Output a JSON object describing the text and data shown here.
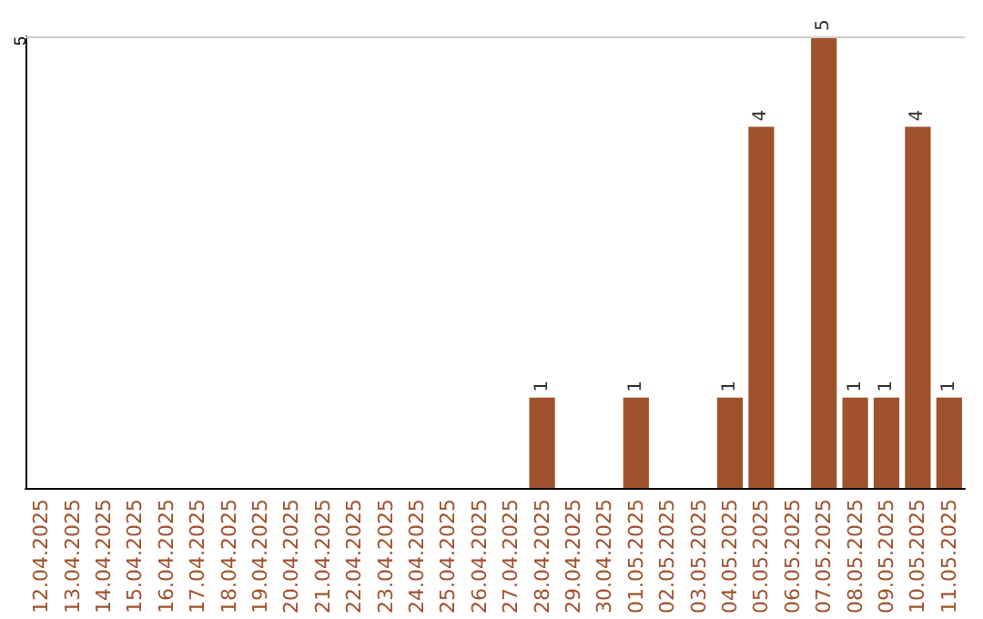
{
  "chart_data": {
    "type": "bar",
    "categories": [
      "12.04.2025",
      "13.04.2025",
      "14.04.2025",
      "15.04.2025",
      "16.04.2025",
      "17.04.2025",
      "18.04.2025",
      "19.04.2025",
      "20.04.2025",
      "21.04.2025",
      "22.04.2025",
      "23.04.2025",
      "24.04.2025",
      "25.04.2025",
      "26.04.2025",
      "27.04.2025",
      "28.04.2025",
      "29.04.2025",
      "30.04.2025",
      "01.05.2025",
      "02.05.2025",
      "03.05.2025",
      "04.05.2025",
      "05.05.2025",
      "06.05.2025",
      "07.05.2025",
      "08.05.2025",
      "09.05.2025",
      "10.05.2025",
      "11.05.2025"
    ],
    "values": [
      null,
      null,
      null,
      null,
      null,
      null,
      null,
      null,
      null,
      null,
      null,
      null,
      null,
      null,
      null,
      null,
      1,
      null,
      null,
      1,
      null,
      null,
      1,
      4,
      null,
      5,
      1,
      1,
      4,
      1
    ],
    "value_labels": [
      null,
      null,
      null,
      null,
      null,
      null,
      null,
      null,
      null,
      null,
      null,
      null,
      null,
      null,
      null,
      null,
      "1",
      null,
      null,
      "1",
      null,
      null,
      "1",
      "4",
      null,
      "5",
      "1",
      "1",
      "4",
      "1"
    ],
    "color": "#a0522d",
    "ylim": [
      0,
      5
    ],
    "ref_lines": [
      {
        "axis": "y",
        "value": 5,
        "label": "5",
        "color": "#cccccc",
        "line_style": "solid"
      }
    ]
  }
}
